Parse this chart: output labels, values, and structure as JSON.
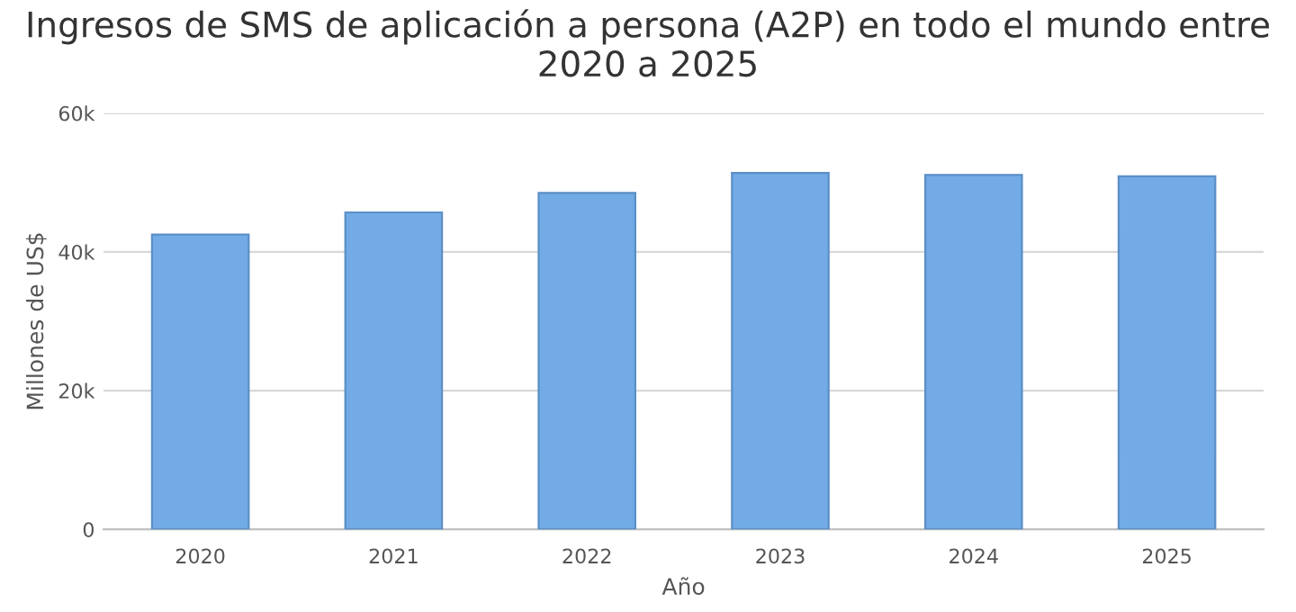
{
  "chart_data": {
    "type": "bar",
    "title": "Ingresos de SMS de aplicación a persona (A2P) en todo el mundo entre 2020 a 2025",
    "xlabel": "Año",
    "ylabel": "Millones de US$",
    "categories": [
      "2020",
      "2021",
      "2022",
      "2023",
      "2024",
      "2025"
    ],
    "values": [
      42500,
      45700,
      48500,
      51400,
      51100,
      50900
    ],
    "color": "#72abe5",
    "ylim": [
      0,
      60000
    ],
    "yticks": [
      0,
      {
        "value": 20000,
        "label": "20k"
      },
      {
        "value": 40000,
        "label": "40k"
      },
      {
        "value": 60000,
        "label": "60k"
      }
    ],
    "grid": "y"
  }
}
